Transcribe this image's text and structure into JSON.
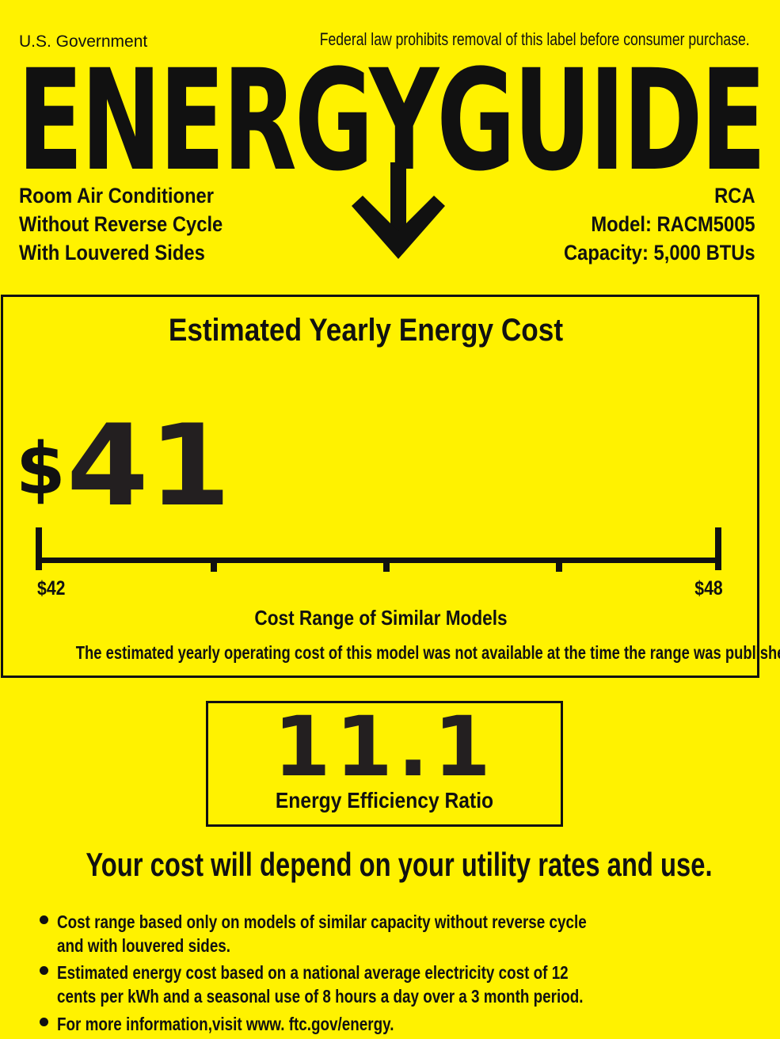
{
  "header": {
    "government": "U.S. Government",
    "notice": "Federal law prohibits removal of this label before consumer purchase.",
    "logo_text": "ENERGYGUIDE"
  },
  "product": {
    "lines": [
      "Room Air Conditioner",
      "Without Reverse Cycle",
      "With Louvered Sides"
    ],
    "brand": "RCA",
    "model": "Model: RACM5005",
    "capacity": "Capacity: 5,000 BTUs"
  },
  "cost": {
    "title": "Estimated Yearly Energy Cost",
    "currency": "$",
    "amount": "41",
    "range_min": "$42",
    "range_max": "$48",
    "range_label": "Cost Range of Similar Models",
    "note": "The estimated yearly operating cost of this model was not available at the time the range was published."
  },
  "efficiency": {
    "value": "11.1",
    "label": "Energy Efficiency Ratio"
  },
  "disclaimer": "Your cost will depend on your utility rates and use.",
  "bullets": [
    [
      "Cost range based only on models of similar capacity without reverse cycle",
      "and with louvered sides."
    ],
    [
      "Estimated energy cost based on a national average electricity cost of 12",
      "cents per kWh and a seasonal use of 8 hours a day over a 3 month period."
    ],
    [
      "For more information,visit www. ftc.gov/energy."
    ]
  ],
  "colors": {
    "background": "#FFF200",
    "ink": "#111111"
  }
}
